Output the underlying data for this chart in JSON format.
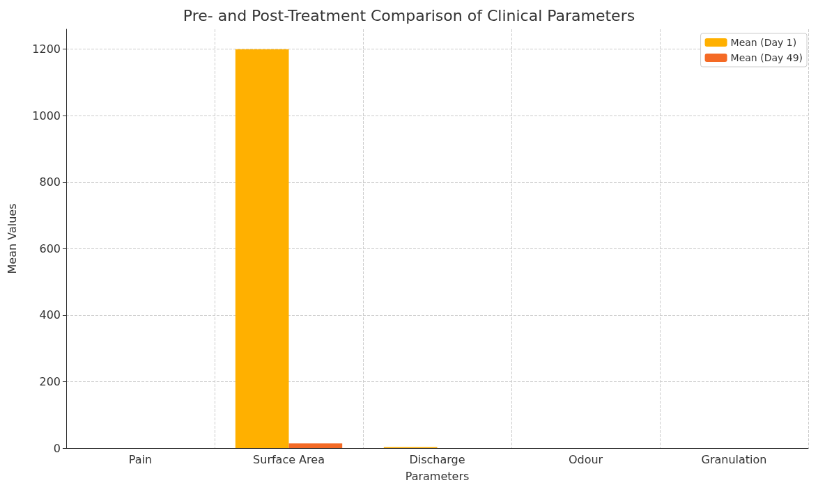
{
  "chart_data": {
    "type": "bar",
    "title": "Pre- and Post-Treatment Comparison of Clinical Parameters",
    "xlabel": "Parameters",
    "ylabel": "Mean Values",
    "categories": [
      "Pain",
      "Surface Area",
      "Discharge",
      "Odour",
      "Granulation"
    ],
    "series": [
      {
        "name": "Mean (Day 1)",
        "color": "#ffb000",
        "values": [
          0,
          1200,
          3,
          0,
          0
        ]
      },
      {
        "name": "Mean (Day 49)",
        "color": "#f46a25",
        "values": [
          0,
          14,
          0,
          0,
          0
        ]
      }
    ],
    "ylim": [
      0,
      1260
    ],
    "yticks": [
      0,
      200,
      400,
      600,
      800,
      1000,
      1200
    ],
    "grid": true,
    "legend": "top right"
  }
}
